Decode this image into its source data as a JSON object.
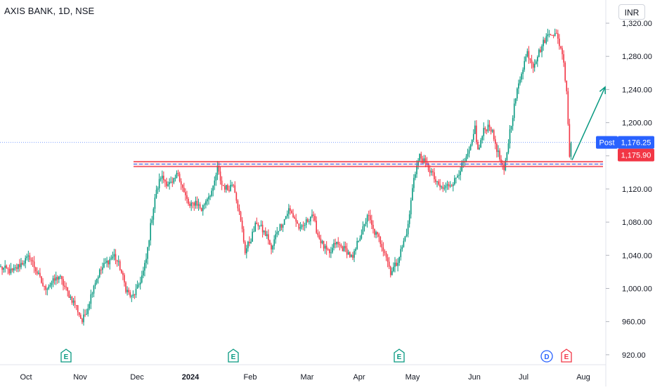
{
  "header": {
    "symbol_title": "AXIS BANK, 1D, NSE",
    "currency": "INR"
  },
  "chart_data": {
    "type": "candlestick",
    "title": "AXIS BANK, 1D, NSE",
    "y_axis": {
      "ticks": [
        920,
        960,
        1000,
        1040,
        1080,
        1120,
        1160,
        1200,
        1240,
        1280,
        1320
      ],
      "tick_labels": [
        "920.00",
        "960.00",
        "1,000.00",
        "1,040.00",
        "1,080.00",
        "1,120.00",
        "1,160.00",
        "1,200.00",
        "1,240.00",
        "1,280.00",
        "1,320.00"
      ],
      "range": [
        908,
        1348
      ]
    },
    "x_axis": {
      "labels": [
        "Oct",
        "Nov",
        "Dec",
        "2024",
        "Feb",
        "Mar",
        "Apr",
        "May",
        "Jun",
        "Jul",
        "Aug"
      ]
    },
    "price_labels": [
      {
        "label": "Post",
        "value_text": "1,176.25",
        "value": 1176.25,
        "color": "#2962ff"
      },
      {
        "value_text": "1,175.90",
        "value": 1175.9,
        "color": "#f23645"
      }
    ],
    "support_zone": {
      "upper": 1153,
      "lower": 1147,
      "mid": 1150
    },
    "events": [
      {
        "type": "earnings",
        "icon": "E",
        "date": "Oct",
        "color": "#089981"
      },
      {
        "type": "earnings",
        "icon": "E",
        "date": "Jan",
        "color": "#089981"
      },
      {
        "type": "earnings",
        "icon": "E",
        "date": "Apr",
        "color": "#089981"
      },
      {
        "type": "dividend",
        "icon": "D",
        "date": "Jul",
        "color": "#2962ff"
      },
      {
        "type": "earnings",
        "icon": "E",
        "date": "Jul",
        "color": "#f23645"
      }
    ],
    "colors": {
      "up": "#089981",
      "down": "#f23645",
      "zone": "#f23645",
      "dash": "#2962ff",
      "arrow": "#089981"
    },
    "path_anchors": [
      [
        0,
        1025
      ],
      [
        8,
        1020
      ],
      [
        14,
        1030
      ],
      [
        20,
        1038
      ],
      [
        26,
        1015
      ],
      [
        30,
        1000
      ],
      [
        36,
        1008
      ],
      [
        40,
        1015
      ],
      [
        46,
        995
      ],
      [
        52,
        978
      ],
      [
        56,
        960
      ],
      [
        60,
        978
      ],
      [
        64,
        1005
      ],
      [
        68,
        1020
      ],
      [
        72,
        1030
      ],
      [
        78,
        1040
      ],
      [
        82,
        1025
      ],
      [
        86,
        1000
      ],
      [
        90,
        988
      ],
      [
        94,
        1000
      ],
      [
        98,
        1020
      ],
      [
        100,
        1035
      ],
      [
        103,
        1075
      ],
      [
        106,
        1110
      ],
      [
        110,
        1135
      ],
      [
        114,
        1128
      ],
      [
        118,
        1125
      ],
      [
        122,
        1140
      ],
      [
        126,
        1115
      ],
      [
        130,
        1098
      ],
      [
        134,
        1105
      ],
      [
        138,
        1095
      ],
      [
        142,
        1110
      ],
      [
        146,
        1120
      ],
      [
        149,
        1145
      ],
      [
        152,
        1125
      ],
      [
        156,
        1120
      ],
      [
        160,
        1128
      ],
      [
        163,
        1100
      ],
      [
        166,
        1070
      ],
      [
        168,
        1045
      ],
      [
        172,
        1060
      ],
      [
        176,
        1080
      ],
      [
        180,
        1070
      ],
      [
        184,
        1060
      ],
      [
        186,
        1045
      ],
      [
        190,
        1070
      ],
      [
        194,
        1080
      ],
      [
        198,
        1095
      ],
      [
        202,
        1085
      ],
      [
        206,
        1070
      ],
      [
        210,
        1080
      ],
      [
        214,
        1090
      ],
      [
        218,
        1065
      ],
      [
        222,
        1050
      ],
      [
        226,
        1040
      ],
      [
        230,
        1055
      ],
      [
        234,
        1050
      ],
      [
        238,
        1045
      ],
      [
        242,
        1035
      ],
      [
        246,
        1060
      ],
      [
        250,
        1075
      ],
      [
        252,
        1090
      ],
      [
        256,
        1070
      ],
      [
        260,
        1060
      ],
      [
        264,
        1045
      ],
      [
        268,
        1020
      ],
      [
        272,
        1030
      ],
      [
        276,
        1050
      ],
      [
        280,
        1075
      ],
      [
        284,
        1135
      ],
      [
        288,
        1160
      ],
      [
        292,
        1150
      ],
      [
        296,
        1140
      ],
      [
        300,
        1125
      ],
      [
        304,
        1120
      ],
      [
        308,
        1125
      ],
      [
        312,
        1130
      ],
      [
        316,
        1145
      ],
      [
        320,
        1155
      ],
      [
        324,
        1175
      ],
      [
        326,
        1195
      ],
      [
        328,
        1165
      ],
      [
        332,
        1190
      ],
      [
        336,
        1198
      ],
      [
        340,
        1175
      ],
      [
        344,
        1150
      ],
      [
        346,
        1140
      ],
      [
        350,
        1190
      ],
      [
        354,
        1230
      ],
      [
        358,
        1262
      ],
      [
        362,
        1285
      ],
      [
        366,
        1270
      ],
      [
        370,
        1285
      ],
      [
        374,
        1300
      ],
      [
        378,
        1310
      ],
      [
        382,
        1305
      ],
      [
        386,
        1285
      ],
      [
        389,
        1240
      ],
      [
        391,
        1160
      ],
      [
        392,
        1176
      ]
    ]
  }
}
